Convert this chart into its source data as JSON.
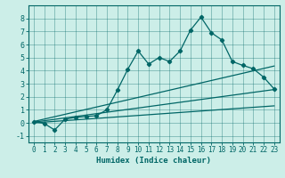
{
  "xlabel": "Humidex (Indice chaleur)",
  "bg_color": "#cceee8",
  "line_color": "#006666",
  "xlim": [
    -0.5,
    23.5
  ],
  "ylim": [
    -1.5,
    9.0
  ],
  "yticks": [
    -1,
    0,
    1,
    2,
    3,
    4,
    5,
    6,
    7,
    8
  ],
  "xticks": [
    0,
    1,
    2,
    3,
    4,
    5,
    6,
    7,
    8,
    9,
    10,
    11,
    12,
    13,
    14,
    15,
    16,
    17,
    18,
    19,
    20,
    21,
    22,
    23
  ],
  "main_x": [
    0,
    1,
    2,
    3,
    4,
    5,
    6,
    7,
    8,
    9,
    10,
    11,
    12,
    13,
    14,
    15,
    16,
    17,
    18,
    19,
    20,
    21,
    22,
    23
  ],
  "main_y": [
    0.1,
    -0.05,
    -0.55,
    0.28,
    0.42,
    0.48,
    0.55,
    1.0,
    2.5,
    4.1,
    5.5,
    4.5,
    5.0,
    4.7,
    5.5,
    7.1,
    8.1,
    6.9,
    6.35,
    4.7,
    4.4,
    4.15,
    3.5,
    2.6
  ],
  "line1_x": [
    0,
    23
  ],
  "line1_y": [
    0.1,
    4.35
  ],
  "line2_x": [
    0,
    23
  ],
  "line2_y": [
    0.05,
    2.55
  ],
  "line3_x": [
    0,
    23
  ],
  "line3_y": [
    0.0,
    1.3
  ]
}
